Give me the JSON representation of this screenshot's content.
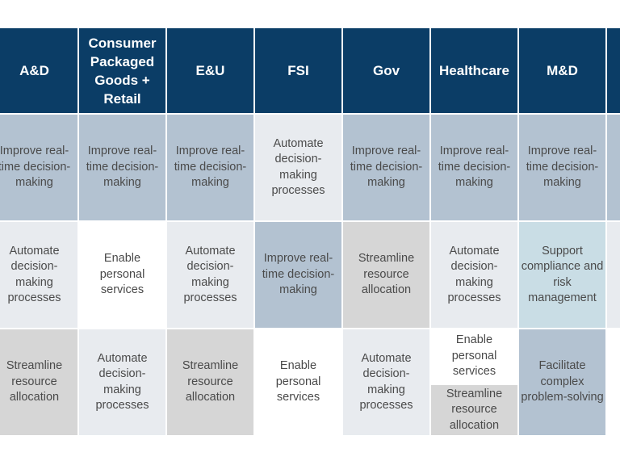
{
  "colors": {
    "header": "#0b3d66",
    "blue": "#b3c2d1",
    "light": "#e8ebef",
    "gray": "#d6d6d6",
    "teal": "#c9dde5",
    "white": "#ffffff",
    "border": "#ffffff"
  },
  "headers": [
    "A&D",
    "Consumer Packaged Goods + Retail",
    "E&U",
    "FSI",
    "Gov",
    "Healthcare",
    "M&D",
    ""
  ],
  "rows": [
    [
      {
        "text": "Improve real-time decision-making",
        "color": "blue"
      },
      {
        "text": "Improve real-time decision-making",
        "color": "blue"
      },
      {
        "text": "Improve real-time decision-making",
        "color": "blue"
      },
      {
        "text": "Automate decision-making processes",
        "color": "light"
      },
      {
        "text": "Improve real-time decision-making",
        "color": "blue"
      },
      {
        "text": "Improve real-time decision-making",
        "color": "blue"
      },
      {
        "text": "Improve real-time decision-making",
        "color": "blue"
      },
      {
        "text": "Im\nti",
        "color": "blue"
      }
    ],
    [
      {
        "text": "Automate decision-making processes",
        "color": "light"
      },
      {
        "text": "Enable personal services",
        "color": "white"
      },
      {
        "text": "Automate decision-making processes",
        "color": "light"
      },
      {
        "text": "Improve real-time decision-making",
        "color": "blue"
      },
      {
        "text": "Streamline resource allocation",
        "color": "gray"
      },
      {
        "text": "Automate decision-making processes",
        "color": "light"
      },
      {
        "text": "Support compliance and risk management",
        "color": "teal"
      },
      {
        "text": "",
        "color": "light"
      }
    ],
    [
      {
        "text": "Streamline resource allocation",
        "color": "gray"
      },
      {
        "text": "Automate decision-making processes",
        "color": "light"
      },
      {
        "text": "Streamline resource allocation",
        "color": "gray"
      },
      {
        "text": "Enable personal services",
        "color": "white"
      },
      {
        "text": "Automate decision-making processes",
        "color": "light"
      },
      {
        "split": [
          {
            "text": "Enable personal services",
            "color": "white"
          },
          {
            "text": "Streamline resource allocation",
            "color": "gray"
          }
        ]
      },
      {
        "text": "Facilitate complex problem-solving",
        "color": "blue"
      },
      {
        "text": "",
        "color": "white"
      }
    ]
  ]
}
